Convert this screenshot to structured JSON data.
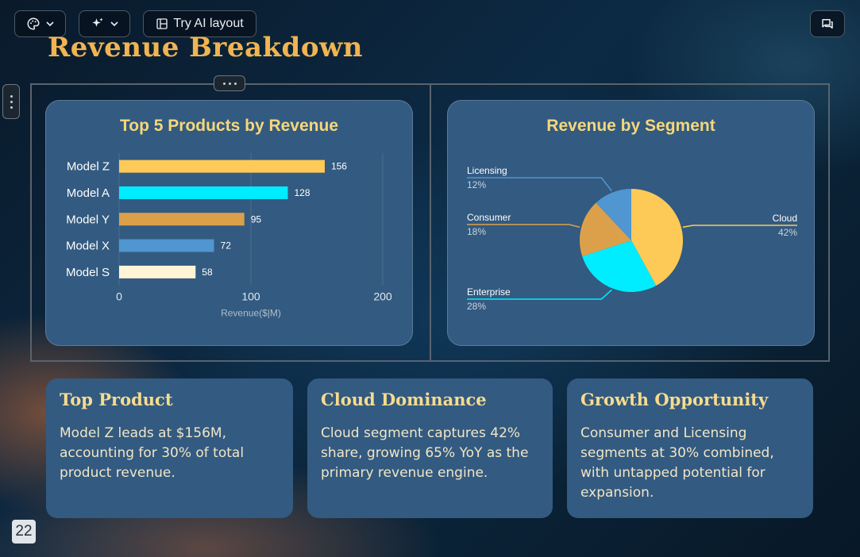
{
  "toolbar": {
    "theme_icon": "palette-icon",
    "magic_icon": "sparkles-icon",
    "ai_layout_label": "Try AI layout",
    "ai_layout_icon": "layout-icon",
    "comments_icon": "comment-icon"
  },
  "slide": {
    "title": "Revenue Breakdown",
    "page_number": "22"
  },
  "charts": {
    "products_title": "Top 5 Products by Revenue",
    "segments_title": "Revenue by Segment"
  },
  "chart_data": [
    {
      "type": "bar",
      "orientation": "horizontal",
      "title": "Top 5 Products by Revenue",
      "categories": [
        "Model Z",
        "Model A",
        "Model Y",
        "Model X",
        "Model S"
      ],
      "values": [
        156,
        128,
        95,
        72,
        58
      ],
      "colors": [
        "#fdca57",
        "#00ecff",
        "#dca04b",
        "#5096d0",
        "#fff5d6"
      ],
      "xlabel": "Revenue($|M)",
      "ylabel": "",
      "xlim": [
        0,
        200
      ],
      "xticks": [
        0,
        100,
        200
      ],
      "grid": true
    },
    {
      "type": "pie",
      "title": "Revenue by Segment",
      "labels": [
        "Cloud",
        "Enterprise",
        "Consumer",
        "Licensing"
      ],
      "values": [
        42,
        28,
        18,
        12
      ],
      "value_labels": [
        "42%",
        "28%",
        "18%",
        "12%"
      ],
      "colors": [
        "#fdca57",
        "#00ecff",
        "#dca04b",
        "#5096d0"
      ]
    }
  ],
  "cards": [
    {
      "title": "Top Product",
      "body": "Model Z leads at $156M, accounting for 30% of total product revenue."
    },
    {
      "title": "Cloud Dominance",
      "body": "Cloud segment captures 42% share, growing 65% YoY as the primary revenue engine."
    },
    {
      "title": "Growth Opportunity",
      "body": "Consumer and Licensing segments at 30% combined, with untapped potential for expansion."
    }
  ]
}
